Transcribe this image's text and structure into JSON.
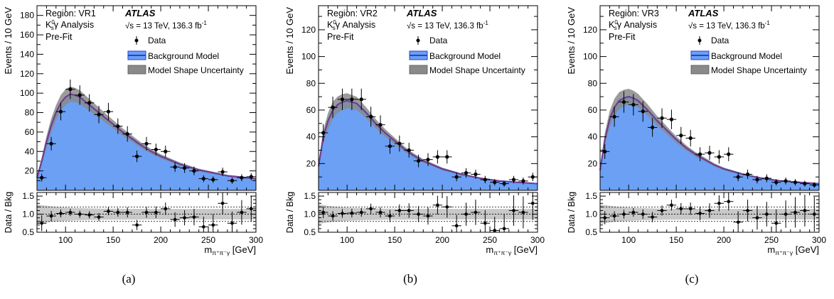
{
  "colors": {
    "fill": "#6ba0f5",
    "line": "#2a3fd0",
    "redline": "#d03030",
    "band": "#8a8a8a",
    "ratio_band": "#c8c8c8",
    "data": "#000000"
  },
  "panels": [
    {
      "caption": "(a)",
      "region": "Region: VR1",
      "analysis_prefix": "K",
      "analysis_sup": "0",
      "analysis_sub": "s",
      "analysis_suffix": "γ Analysis",
      "prefit": "Pre-Fit",
      "atlas": "ATLAS",
      "energy": "√s = 13 TeV, 136.3 fb",
      "energy_sup": "-1",
      "legend": [
        "Data",
        "Background Model",
        "Model Shape Uncertainty"
      ],
      "ylabel": "Events / 10 GeV",
      "ratio_ylabel": "Data / Bkg",
      "xlabel_main": "m",
      "xlabel_sub": "π⁺π⁻γ",
      "xlabel_unit": " [GeV]"
    },
    {
      "caption": "(b)",
      "region": "Region: VR2",
      "analysis_prefix": "K",
      "analysis_sup": "0",
      "analysis_sub": "s",
      "analysis_suffix": "γ Analysis",
      "prefit": "Pre-Fit",
      "atlas": "ATLAS",
      "energy": "√s = 13 TeV, 136.3 fb",
      "energy_sup": "-1",
      "legend": [
        "Data",
        "Background Model",
        "Model Shape Uncertainty"
      ],
      "ylabel": "Events / 10 GeV",
      "ratio_ylabel": "Data / Bkg",
      "xlabel_main": "m",
      "xlabel_sub": "π⁺π⁻γ",
      "xlabel_unit": " [GeV]"
    },
    {
      "caption": "(c)",
      "region": "Region: VR3",
      "analysis_prefix": "K",
      "analysis_sup": "0",
      "analysis_sub": "s",
      "analysis_suffix": "γ Analysis",
      "prefit": "Pre-Fit",
      "atlas": "ATLAS",
      "energy": "√s = 13 TeV, 136.3 fb",
      "energy_sup": "-1",
      "legend": [
        "Data",
        "Background Model",
        "Model Shape Uncertainty"
      ],
      "ylabel": "Events / 10 GeV",
      "ratio_ylabel": "Data / Bkg",
      "xlabel_main": "m",
      "xlabel_sub": "π⁺π⁻γ",
      "xlabel_unit": " [GeV]"
    }
  ],
  "chart_data": [
    {
      "type": "scatter",
      "xlim": [
        70,
        300
      ],
      "ylim": [
        0,
        190
      ],
      "yticks": [
        20,
        40,
        60,
        80,
        100,
        120,
        140,
        160,
        180
      ],
      "xticks": [
        100,
        150,
        200,
        250,
        300
      ],
      "ratio_ylim": [
        0.5,
        1.6
      ],
      "ratio_yticks": [
        0.5,
        1.0,
        1.5
      ],
      "model": {
        "x": [
          70,
          75,
          80,
          85,
          90,
          95,
          100,
          105,
          110,
          115,
          120,
          130,
          140,
          150,
          160,
          170,
          180,
          190,
          200,
          210,
          220,
          230,
          240,
          250,
          260,
          270,
          280,
          290,
          300
        ],
        "y": [
          13,
          30,
          50,
          67,
          80,
          90,
          96,
          99,
          98,
          96,
          92,
          84,
          76,
          68,
          60,
          53,
          46,
          40,
          35,
          31,
          27,
          24,
          21,
          19,
          17,
          15,
          14,
          13,
          12
        ]
      },
      "data": {
        "x": [
          75,
          85,
          95,
          105,
          115,
          125,
          135,
          145,
          155,
          165,
          175,
          185,
          195,
          205,
          215,
          225,
          235,
          245,
          255,
          265,
          275,
          285,
          295
        ],
        "y": [
          13,
          48,
          81,
          104,
          98,
          90,
          78,
          81,
          66,
          58,
          35,
          48,
          42,
          40,
          24,
          23,
          20,
          12,
          11,
          19,
          10,
          13,
          14
        ],
        "err": [
          4,
          7,
          9,
          10,
          10,
          9,
          9,
          9,
          8,
          8,
          6,
          7,
          6,
          6,
          5,
          5,
          4.5,
          3.5,
          3.3,
          4.4,
          3.2,
          3.6,
          3.7
        ]
      },
      "ratio": {
        "y": [
          0.75,
          0.95,
          1.02,
          1.05,
          1.0,
          0.98,
          0.92,
          1.08,
          1.05,
          1.05,
          0.7,
          1.05,
          1.05,
          1.15,
          0.85,
          0.9,
          0.92,
          0.65,
          0.7,
          1.3,
          0.75,
          1.05,
          1.15
        ],
        "err": [
          0.22,
          0.14,
          0.11,
          0.1,
          0.1,
          0.1,
          0.11,
          0.11,
          0.12,
          0.14,
          0.14,
          0.15,
          0.16,
          0.17,
          0.2,
          0.21,
          0.23,
          0.28,
          0.3,
          0.3,
          0.32,
          0.34,
          0.36
        ]
      }
    },
    {
      "type": "scatter",
      "xlim": [
        70,
        300
      ],
      "ylim": [
        0,
        138
      ],
      "yticks": [
        20,
        40,
        60,
        80,
        100,
        120
      ],
      "xticks": [
        100,
        150,
        200,
        250,
        300
      ],
      "ratio_ylim": [
        0.5,
        1.6
      ],
      "ratio_yticks": [
        0.5,
        1.0,
        1.5
      ],
      "model": {
        "x": [
          70,
          75,
          80,
          85,
          90,
          95,
          100,
          105,
          110,
          120,
          130,
          140,
          150,
          160,
          170,
          180,
          190,
          200,
          210,
          220,
          230,
          240,
          250,
          260,
          270,
          280,
          290,
          300
        ],
        "y": [
          18,
          40,
          52,
          60,
          64,
          66,
          67,
          66,
          65,
          58,
          50,
          43,
          37,
          31,
          26,
          22,
          19,
          16,
          14,
          12,
          10.5,
          9,
          8,
          7,
          6.5,
          6,
          5.5,
          5
        ]
      },
      "data": {
        "x": [
          75,
          85,
          95,
          105,
          115,
          125,
          135,
          145,
          155,
          165,
          175,
          185,
          195,
          205,
          215,
          225,
          235,
          245,
          255,
          265,
          275,
          285,
          295
        ],
        "y": [
          43,
          62,
          68,
          68,
          68,
          55,
          49,
          33,
          35,
          30,
          22,
          23,
          25,
          25,
          10,
          13,
          12,
          8,
          6,
          5,
          8,
          7,
          10
        ],
        "err": [
          6.5,
          8,
          8,
          8,
          8,
          7.5,
          7,
          5.7,
          6,
          5.5,
          4.7,
          4.8,
          5,
          5,
          3.2,
          3.6,
          3.5,
          2.8,
          2.4,
          2.2,
          2.8,
          2.6,
          3.2
        ]
      },
      "ratio": {
        "y": [
          1.05,
          0.95,
          1.02,
          1.03,
          1.05,
          1.15,
          1.05,
          0.95,
          1.1,
          1.1,
          1.0,
          0.95,
          1.25,
          1.2,
          0.68,
          1.0,
          1.05,
          0.75,
          0.55,
          0.6,
          1.1,
          1.05,
          1.3
        ],
        "err": [
          0.16,
          0.13,
          0.12,
          0.12,
          0.12,
          0.14,
          0.14,
          0.17,
          0.17,
          0.2,
          0.22,
          0.24,
          0.26,
          0.3,
          0.3,
          0.32,
          0.35,
          0.36,
          0.38,
          0.4,
          0.42,
          0.44,
          0.46
        ]
      }
    },
    {
      "type": "scatter",
      "xlim": [
        70,
        300
      ],
      "ylim": [
        0,
        138
      ],
      "yticks": [
        20,
        40,
        60,
        80,
        100,
        120
      ],
      "xticks": [
        100,
        150,
        200,
        250,
        300
      ],
      "ratio_ylim": [
        0.5,
        1.6
      ],
      "ratio_yticks": [
        0.5,
        1.0,
        1.5
      ],
      "model": {
        "x": [
          70,
          75,
          80,
          85,
          90,
          95,
          100,
          105,
          110,
          120,
          130,
          140,
          150,
          160,
          170,
          180,
          190,
          200,
          210,
          220,
          230,
          240,
          250,
          260,
          270,
          280,
          290,
          300
        ],
        "y": [
          15,
          38,
          53,
          62,
          67,
          69,
          70,
          69,
          67,
          60,
          52,
          45,
          38,
          32,
          27,
          23,
          19,
          16,
          14,
          12,
          10.5,
          9,
          8,
          7,
          6.5,
          6,
          5.5,
          5
        ]
      },
      "data": {
        "x": [
          75,
          85,
          95,
          105,
          115,
          125,
          135,
          145,
          155,
          165,
          175,
          185,
          195,
          205,
          215,
          225,
          235,
          245,
          255,
          265,
          275,
          285,
          295
        ],
        "y": [
          29,
          55,
          66,
          64,
          59,
          47,
          54,
          53,
          41,
          39,
          27,
          28,
          25,
          27,
          10,
          12,
          8,
          9,
          6,
          7,
          6,
          5,
          4
        ],
        "err": [
          5.5,
          7.5,
          8,
          8,
          7.7,
          7,
          7.3,
          7.3,
          6.4,
          6.2,
          5.2,
          5.3,
          5,
          5.2,
          3.2,
          3.5,
          2.8,
          3,
          2.4,
          2.6,
          2.4,
          2.2,
          2
        ]
      },
      "ratio": {
        "y": [
          0.9,
          0.95,
          1.0,
          1.05,
          1.0,
          0.92,
          1.1,
          1.25,
          1.15,
          1.15,
          1.02,
          1.1,
          1.3,
          1.35,
          0.78,
          1.1,
          0.9,
          1.0,
          0.75,
          1.0,
          1.05,
          1.1,
          1.0
        ],
        "err": [
          0.18,
          0.13,
          0.12,
          0.12,
          0.13,
          0.14,
          0.14,
          0.15,
          0.16,
          0.17,
          0.19,
          0.2,
          0.22,
          0.25,
          0.3,
          0.3,
          0.33,
          0.34,
          0.38,
          0.38,
          0.42,
          0.44,
          0.48
        ]
      }
    }
  ]
}
